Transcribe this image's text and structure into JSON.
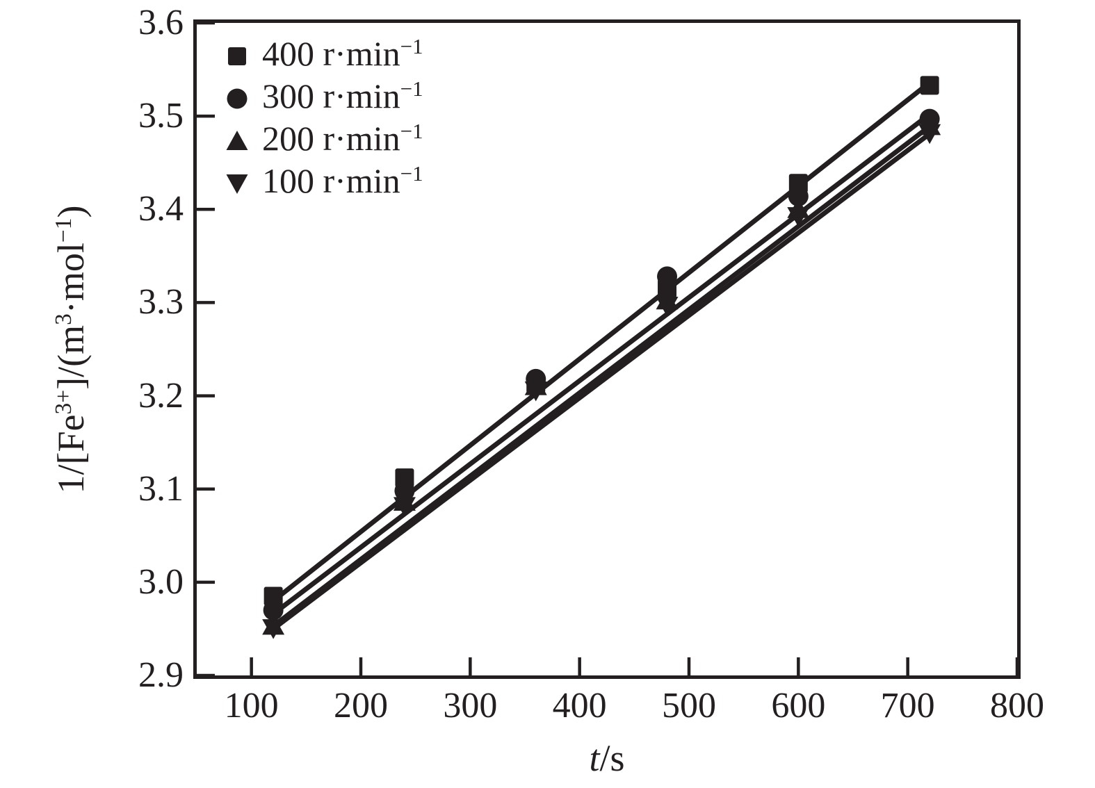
{
  "figure": {
    "ink_color": "#231f20",
    "background": "#ffffff"
  },
  "chart_data": {
    "type": "scatter",
    "title": "",
    "grid": false,
    "legend_position": "top-left",
    "xlabel_text": "t/s",
    "xlabel_parts": [
      {
        "t": "t",
        "italic": true
      },
      {
        "t": "/s"
      }
    ],
    "ylabel_text": "1/[Fe³⁺]/(m³·mol⁻¹)",
    "ylabel_parts": [
      {
        "t": "1/[Fe"
      },
      {
        "t": "3+",
        "sup": true
      },
      {
        "t": "]/(m"
      },
      {
        "t": "3",
        "sup": true
      },
      {
        "t": "·mol"
      },
      {
        "t": "−1",
        "sup": true
      },
      {
        "t": ")"
      }
    ],
    "xlim": [
      50,
      800
    ],
    "ylim": [
      2.9,
      3.6
    ],
    "xticks": [
      "100",
      "200",
      "300",
      "400",
      "500",
      "600",
      "700",
      "800"
    ],
    "yticks": [
      "2.9",
      "3.0",
      "3.1",
      "3.2",
      "3.3",
      "3.4",
      "3.5",
      "3.6"
    ],
    "x": [
      120,
      240,
      360,
      480,
      600,
      720
    ],
    "series": [
      {
        "name": "100 r·min⁻¹",
        "label_main": "100 r·min",
        "label_sup": "−1",
        "marker": "triangle-down",
        "values": [
          2.951,
          3.082,
          3.206,
          3.297,
          3.393,
          3.482
        ],
        "trend": [
          [
            120,
            2.95
          ],
          [
            720,
            3.481
          ]
        ]
      },
      {
        "name": "200 r·min⁻¹",
        "label_main": "200 r·min",
        "label_sup": "−1",
        "marker": "triangle-up",
        "values": [
          2.953,
          3.086,
          3.21,
          3.302,
          3.4,
          3.489
        ],
        "trend": [
          [
            120,
            2.953
          ],
          [
            720,
            3.489
          ]
        ]
      },
      {
        "name": "300 r·min⁻¹",
        "label_main": "300 r·min",
        "label_sup": "−1",
        "marker": "circle",
        "values": [
          2.97,
          3.098,
          3.218,
          3.328,
          3.414,
          3.497
        ],
        "trend": [
          [
            120,
            2.966
          ],
          [
            720,
            3.502
          ]
        ]
      },
      {
        "name": "400 r·min⁻¹",
        "label_main": "400 r·min",
        "label_sup": "−1",
        "marker": "square",
        "values": [
          2.985,
          3.112,
          3.213,
          3.315,
          3.428,
          3.533
        ],
        "trend": [
          [
            120,
            2.98
          ],
          [
            720,
            3.536
          ]
        ]
      }
    ],
    "legend_order": [
      "400 r·min⁻¹",
      "300 r·min⁻¹",
      "200 r·min⁻¹",
      "100 r·min⁻¹"
    ]
  }
}
